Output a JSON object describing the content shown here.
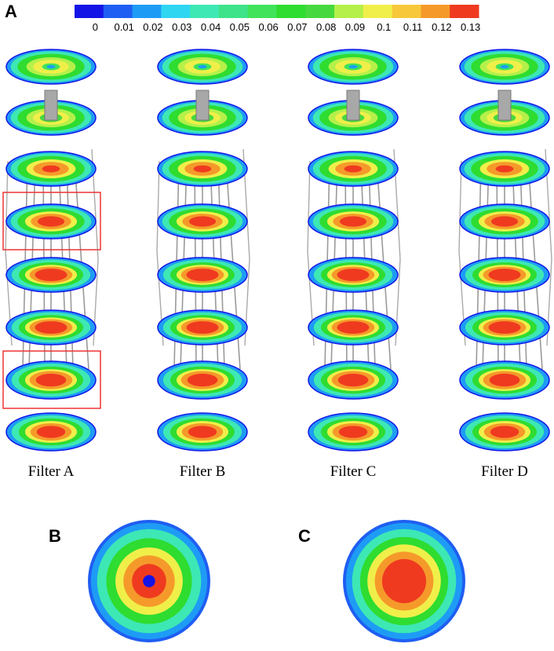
{
  "panels": {
    "a": "A",
    "b": "B",
    "c": "C"
  },
  "colorbar": {
    "ticks": [
      0,
      0.01,
      0.02,
      0.03,
      0.04,
      0.05,
      0.06,
      0.07,
      0.08,
      0.09,
      0.1,
      0.11,
      0.12,
      0.13
    ],
    "colors": [
      "#1414e6",
      "#1f5ef2",
      "#1e9cf5",
      "#2fd6f2",
      "#3de8b4",
      "#3ee38a",
      "#40e35a",
      "#2fdc30",
      "#46d93f",
      "#b5f04a",
      "#f0ef4a",
      "#f7c93a",
      "#f59a2a",
      "#ef3a20"
    ]
  },
  "filters": [
    "Filter A",
    "Filter B",
    "Filter C",
    "Filter D"
  ]
}
